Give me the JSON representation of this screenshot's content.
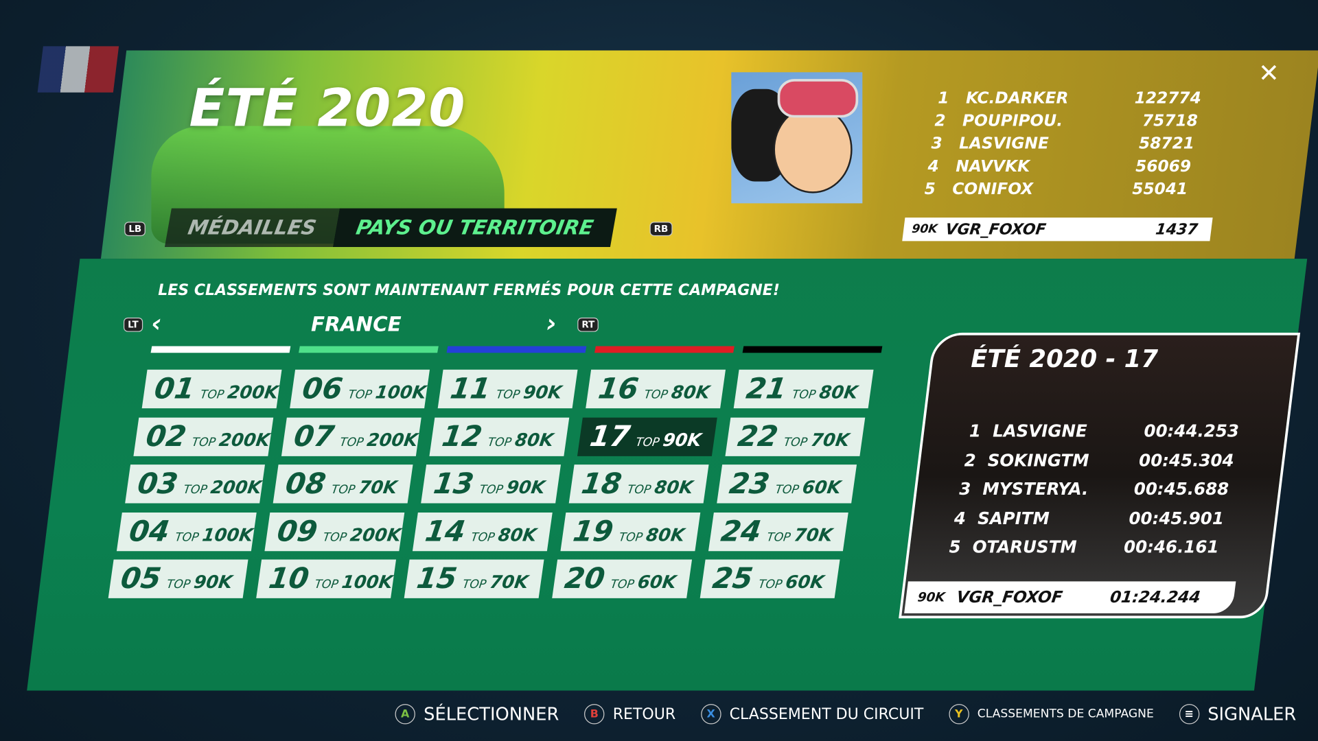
{
  "header": {
    "title": "ÉTÉ 2020",
    "tabs": [
      {
        "label": "MÉDAILLES",
        "active": false
      },
      {
        "label": "PAYS OU TERRITOIRE",
        "active": true
      }
    ],
    "lb_hint": "LB",
    "rb_hint": "RB",
    "close_icon": "close-icon"
  },
  "campaign_leaderboard": [
    {
      "rank": "1",
      "name": "KC.DARKER",
      "score": "122774"
    },
    {
      "rank": "2",
      "name": "POUPIPOU.",
      "score": "75718"
    },
    {
      "rank": "3",
      "name": "LASVIGNE",
      "score": "58721"
    },
    {
      "rank": "4",
      "name": "NAVVKK",
      "score": "56069"
    },
    {
      "rank": "5",
      "name": "CONIFOX",
      "score": "55041"
    }
  ],
  "me_campaign": {
    "tier": "90K",
    "name": "VGR_FOXOF",
    "score": "1437"
  },
  "main": {
    "closed_message": "LES CLASSEMENTS SONT MAINTENANT FERMÉS POUR CETTE CAMPAGNE!",
    "country": "FRANCE",
    "lt_hint": "LT",
    "rt_hint": "RT",
    "stripe_colors": [
      "#ffffff",
      "#4fe08a",
      "#2440d8",
      "#e01c24",
      "#000000"
    ],
    "top_label": "TOP",
    "tracks": [
      {
        "num": "01",
        "rank": "200K"
      },
      {
        "num": "02",
        "rank": "200K"
      },
      {
        "num": "03",
        "rank": "200K"
      },
      {
        "num": "04",
        "rank": "100K"
      },
      {
        "num": "05",
        "rank": "90K"
      },
      {
        "num": "06",
        "rank": "100K"
      },
      {
        "num": "07",
        "rank": "200K"
      },
      {
        "num": "08",
        "rank": "70K"
      },
      {
        "num": "09",
        "rank": "200K"
      },
      {
        "num": "10",
        "rank": "100K"
      },
      {
        "num": "11",
        "rank": "90K"
      },
      {
        "num": "12",
        "rank": "80K"
      },
      {
        "num": "13",
        "rank": "90K"
      },
      {
        "num": "14",
        "rank": "80K"
      },
      {
        "num": "15",
        "rank": "70K"
      },
      {
        "num": "16",
        "rank": "80K"
      },
      {
        "num": "17",
        "rank": "90K",
        "selected": true
      },
      {
        "num": "18",
        "rank": "80K"
      },
      {
        "num": "19",
        "rank": "80K"
      },
      {
        "num": "20",
        "rank": "60K"
      },
      {
        "num": "21",
        "rank": "80K"
      },
      {
        "num": "22",
        "rank": "70K"
      },
      {
        "num": "23",
        "rank": "60K"
      },
      {
        "num": "24",
        "rank": "70K"
      },
      {
        "num": "25",
        "rank": "60K"
      }
    ]
  },
  "track_card": {
    "title": "ÉTÉ 2020 - 17",
    "rows": [
      {
        "rank": "1",
        "name": "LASVIGNE",
        "time": "00:44.253"
      },
      {
        "rank": "2",
        "name": "SOKINGTM",
        "time": "00:45.304"
      },
      {
        "rank": "3",
        "name": "MYSTERYA.",
        "time": "00:45.688"
      },
      {
        "rank": "4",
        "name": "SAPITM",
        "time": "00:45.901"
      },
      {
        "rank": "5",
        "name": "OTARUSTM",
        "time": "00:46.161"
      }
    ],
    "me": {
      "tier": "90K",
      "name": "VGR_FOXOF",
      "time": "01:24.244"
    }
  },
  "footer": [
    {
      "glyph": "A",
      "label": "SÉLECTIONNER",
      "color": "#7bc043"
    },
    {
      "glyph": "B",
      "label": "RETOUR",
      "color": "#e0403a"
    },
    {
      "glyph": "X",
      "label": "CLASSEMENT DU CIRCUIT",
      "color": "#3a8ee0"
    },
    {
      "glyph": "Y",
      "label": "CLASSEMENTS DE CAMPAGNE",
      "color": "#e8c020"
    },
    {
      "glyph": "≡",
      "label": "SIGNALER",
      "color": "#ffffff"
    }
  ]
}
